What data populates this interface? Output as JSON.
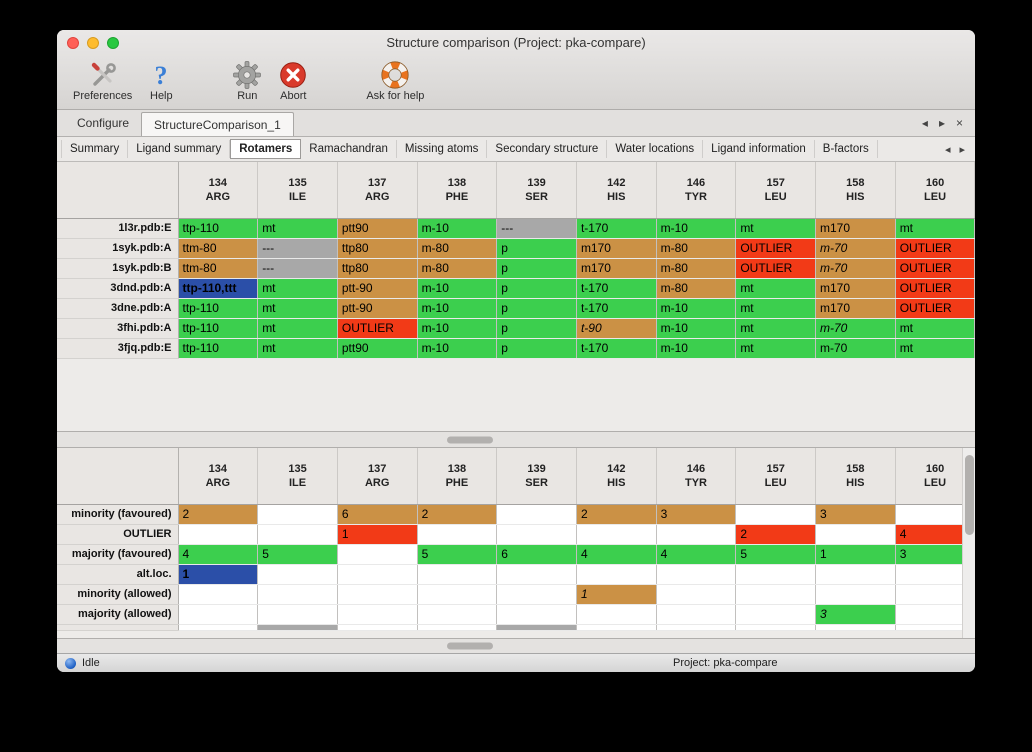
{
  "window": {
    "title": "Structure comparison (Project: pka-compare)"
  },
  "toolbar": {
    "items": [
      {
        "label": "Preferences",
        "icon": "tools-icon"
      },
      {
        "label": "Help",
        "icon": "question-icon"
      },
      {
        "label": "Run",
        "icon": "gear-icon"
      },
      {
        "label": "Abort",
        "icon": "abort-icon"
      },
      {
        "label": "Ask for help",
        "icon": "lifebuoy-icon"
      }
    ]
  },
  "tabs": {
    "main": [
      {
        "label": "Configure",
        "active": false
      },
      {
        "label": "StructureComparison_1",
        "active": true
      }
    ],
    "sub": [
      {
        "label": "Summary",
        "active": false
      },
      {
        "label": "Ligand summary",
        "active": false
      },
      {
        "label": "Rotamers",
        "active": true
      },
      {
        "label": "Ramachandran",
        "active": false
      },
      {
        "label": "Missing atoms",
        "active": false
      },
      {
        "label": "Secondary structure",
        "active": false
      },
      {
        "label": "Water locations",
        "active": false
      },
      {
        "label": "Ligand information",
        "active": false
      },
      {
        "label": "B-factors",
        "active": false
      }
    ]
  },
  "icons": {
    "prev": "◂",
    "next": "▸",
    "close": "×"
  },
  "colors": {
    "green": "#3ccf4e",
    "orange": "#cb9145",
    "red": "#f23a17",
    "gray": "#a8a8a8",
    "selected": "#2b4fa8"
  },
  "columns": [
    {
      "num": "134",
      "res": "ARG"
    },
    {
      "num": "135",
      "res": "ILE"
    },
    {
      "num": "137",
      "res": "ARG"
    },
    {
      "num": "138",
      "res": "PHE"
    },
    {
      "num": "139",
      "res": "SER"
    },
    {
      "num": "142",
      "res": "HIS"
    },
    {
      "num": "146",
      "res": "TYR"
    },
    {
      "num": "157",
      "res": "LEU"
    },
    {
      "num": "158",
      "res": "HIS"
    },
    {
      "num": "160",
      "res": "LEU"
    }
  ],
  "rotamer_table": {
    "rows": [
      {
        "label": "1l3r.pdb:E",
        "cells": [
          {
            "t": "ttp-110",
            "s": "green"
          },
          {
            "t": "mt",
            "s": "green"
          },
          {
            "t": "ptt90",
            "s": "orange"
          },
          {
            "t": "m-10",
            "s": "green"
          },
          {
            "t": "---",
            "s": "gray"
          },
          {
            "t": "t-170",
            "s": "green"
          },
          {
            "t": "m-10",
            "s": "green"
          },
          {
            "t": "mt",
            "s": "green"
          },
          {
            "t": "m170",
            "s": "orange"
          },
          {
            "t": "mt",
            "s": "green"
          }
        ]
      },
      {
        "label": "1syk.pdb:A",
        "cells": [
          {
            "t": "ttm-80",
            "s": "orange"
          },
          {
            "t": "---",
            "s": "gray"
          },
          {
            "t": "ttp80",
            "s": "orange"
          },
          {
            "t": "m-80",
            "s": "orange"
          },
          {
            "t": "p",
            "s": "green"
          },
          {
            "t": "m170",
            "s": "orange"
          },
          {
            "t": "m-80",
            "s": "orange"
          },
          {
            "t": "OUTLIER",
            "s": "red"
          },
          {
            "t": "m-70",
            "s": "orange",
            "i": true
          },
          {
            "t": "OUTLIER",
            "s": "red"
          }
        ]
      },
      {
        "label": "1syk.pdb:B",
        "cells": [
          {
            "t": "ttm-80",
            "s": "orange"
          },
          {
            "t": "---",
            "s": "gray"
          },
          {
            "t": "ttp80",
            "s": "orange"
          },
          {
            "t": "m-80",
            "s": "orange"
          },
          {
            "t": "p",
            "s": "green"
          },
          {
            "t": "m170",
            "s": "orange"
          },
          {
            "t": "m-80",
            "s": "orange"
          },
          {
            "t": "OUTLIER",
            "s": "red"
          },
          {
            "t": "m-70",
            "s": "orange",
            "i": true
          },
          {
            "t": "OUTLIER",
            "s": "red"
          }
        ]
      },
      {
        "label": "3dnd.pdb:A",
        "cells": [
          {
            "t": "ttp-110,ttt",
            "s": "selected"
          },
          {
            "t": "mt",
            "s": "green"
          },
          {
            "t": "ptt-90",
            "s": "orange"
          },
          {
            "t": "m-10",
            "s": "green"
          },
          {
            "t": "p",
            "s": "green"
          },
          {
            "t": "t-170",
            "s": "green"
          },
          {
            "t": "m-80",
            "s": "orange"
          },
          {
            "t": "mt",
            "s": "green"
          },
          {
            "t": "m170",
            "s": "orange"
          },
          {
            "t": "OUTLIER",
            "s": "red"
          }
        ]
      },
      {
        "label": "3dne.pdb:A",
        "cells": [
          {
            "t": "ttp-110",
            "s": "green"
          },
          {
            "t": "mt",
            "s": "green"
          },
          {
            "t": "ptt-90",
            "s": "orange"
          },
          {
            "t": "m-10",
            "s": "green"
          },
          {
            "t": "p",
            "s": "green"
          },
          {
            "t": "t-170",
            "s": "green"
          },
          {
            "t": "m-10",
            "s": "green"
          },
          {
            "t": "mt",
            "s": "green"
          },
          {
            "t": "m170",
            "s": "orange"
          },
          {
            "t": "OUTLIER",
            "s": "red"
          }
        ]
      },
      {
        "label": "3fhi.pdb:A",
        "cells": [
          {
            "t": "ttp-110",
            "s": "green"
          },
          {
            "t": "mt",
            "s": "green"
          },
          {
            "t": "OUTLIER",
            "s": "red"
          },
          {
            "t": "m-10",
            "s": "green"
          },
          {
            "t": "p",
            "s": "green"
          },
          {
            "t": "t-90",
            "s": "orange",
            "i": true
          },
          {
            "t": "m-10",
            "s": "green"
          },
          {
            "t": "mt",
            "s": "green"
          },
          {
            "t": "m-70",
            "s": "green",
            "i": true
          },
          {
            "t": "mt",
            "s": "green"
          }
        ]
      },
      {
        "label": "3fjq.pdb:E",
        "cells": [
          {
            "t": "ttp-110",
            "s": "green"
          },
          {
            "t": "mt",
            "s": "green"
          },
          {
            "t": "ptt90",
            "s": "green"
          },
          {
            "t": "m-10",
            "s": "green"
          },
          {
            "t": "p",
            "s": "green"
          },
          {
            "t": "t-170",
            "s": "green"
          },
          {
            "t": "m-10",
            "s": "green"
          },
          {
            "t": "mt",
            "s": "green"
          },
          {
            "t": "m-70",
            "s": "green"
          },
          {
            "t": "mt",
            "s": "green"
          }
        ]
      }
    ]
  },
  "summary_table": {
    "rows": [
      {
        "label": "minority (favoured)",
        "cells": [
          {
            "t": "2",
            "s": "orange"
          },
          {},
          {
            "t": "6",
            "s": "orange"
          },
          {
            "t": "2",
            "s": "orange"
          },
          {},
          {
            "t": "2",
            "s": "orange"
          },
          {
            "t": "3",
            "s": "orange"
          },
          {},
          {
            "t": "3",
            "s": "orange"
          },
          {}
        ]
      },
      {
        "label": "OUTLIER",
        "cells": [
          {},
          {},
          {
            "t": "1",
            "s": "red"
          },
          {},
          {},
          {},
          {},
          {
            "t": "2",
            "s": "red"
          },
          {},
          {
            "t": "4",
            "s": "red"
          }
        ]
      },
      {
        "label": "majority (favoured)",
        "cells": [
          {
            "t": "4",
            "s": "green"
          },
          {
            "t": "5",
            "s": "green"
          },
          {},
          {
            "t": "5",
            "s": "green"
          },
          {
            "t": "6",
            "s": "green"
          },
          {
            "t": "4",
            "s": "green"
          },
          {
            "t": "4",
            "s": "green"
          },
          {
            "t": "5",
            "s": "green"
          },
          {
            "t": "1",
            "s": "green"
          },
          {
            "t": "3",
            "s": "green"
          }
        ]
      },
      {
        "label": "alt.loc.",
        "cells": [
          {
            "t": "1",
            "s": "selected"
          },
          {},
          {},
          {},
          {},
          {},
          {},
          {},
          {},
          {}
        ]
      },
      {
        "label": "minority (allowed)",
        "cells": [
          {},
          {},
          {},
          {},
          {},
          {
            "t": "1",
            "s": "orange",
            "i": true
          },
          {},
          {},
          {},
          {}
        ]
      },
      {
        "label": "majority (allowed)",
        "cells": [
          {},
          {},
          {},
          {},
          {},
          {},
          {},
          {},
          {
            "t": "3",
            "s": "green",
            "i": true
          },
          {}
        ]
      }
    ],
    "partial_row_gray_cols": [
      1,
      4
    ]
  },
  "statusbar": {
    "left": "Idle",
    "right": "Project: pka-compare"
  }
}
